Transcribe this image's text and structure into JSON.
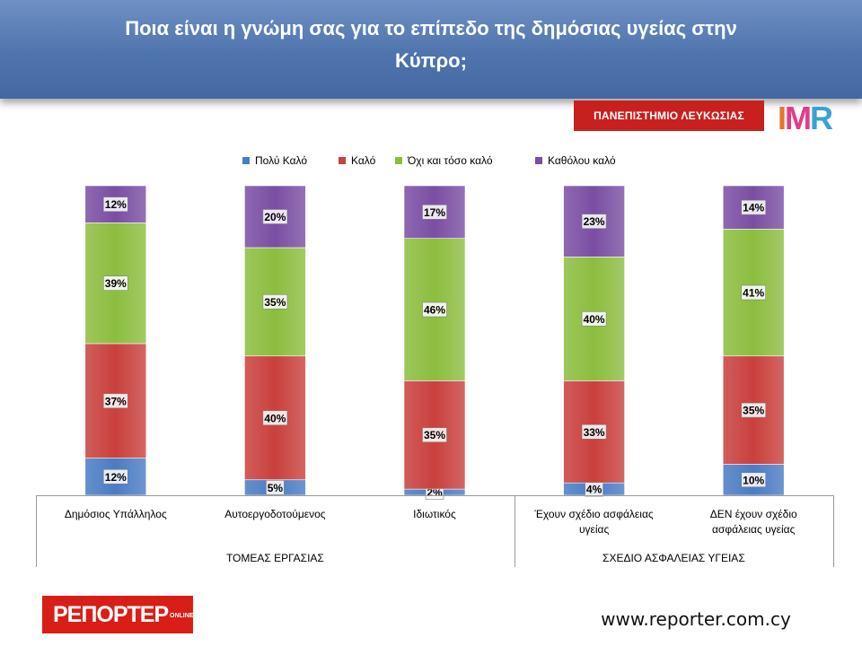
{
  "header": {
    "title_line1": "Ποια είναι η γνώμη σας για το επίπεδο της δημόσιας υγείας στην",
    "title_line2": "Κύπρο;"
  },
  "logos": {
    "university": "ΠΑΝΕΠΙΣΤΗΜΙΟ ΛΕΥΚΩΣΙΑΣ",
    "imr": "IMR",
    "reporter": "ΡΕΠΟΡΤΕΡ",
    "reporter_sub": "ONLINE"
  },
  "footer": {
    "website": "www.reporter.com.cy"
  },
  "chart_data": {
    "type": "bar",
    "stacked": true,
    "percent_stacked": true,
    "legend_position": "top",
    "categories": [
      "Δημόσιος Υπάλληλος",
      "Αυτοεργοδοτούμενος",
      "Ιδιωτικός",
      "Έχουν σχέδιο ασφάλειας υγείας",
      "ΔΕΝ έχουν σχέδιο ασφάλειας υγείας"
    ],
    "category_lines": [
      [
        "Δημόσιος Υπάλληλος"
      ],
      [
        "Αυτοεργοδοτούμενος"
      ],
      [
        "Ιδιωτικός"
      ],
      [
        "Έχουν σχέδιο ασφάλειας",
        "υγείας"
      ],
      [
        "ΔΕΝ έχουν σχέδιο",
        "ασφάλειας υγείας"
      ]
    ],
    "groups": [
      {
        "name": "ΤΟΜΕΑΣ ΕΡΓΑΣΙΑΣ",
        "categories": [
          0,
          1,
          2
        ]
      },
      {
        "name": "ΣΧΕΔΙΟ ΑΣΦΑΛΕΙΑΣ ΥΓΕΙΑΣ",
        "categories": [
          3,
          4
        ]
      }
    ],
    "series": [
      {
        "name": "Πολύ Καλό",
        "color": "#4a7cc4",
        "values": [
          12,
          5,
          2,
          4,
          10
        ]
      },
      {
        "name": "Καλό",
        "color": "#c9403d",
        "values": [
          37,
          40,
          35,
          33,
          35
        ]
      },
      {
        "name": "Όχι και τόσο καλό",
        "color": "#8cbd3f",
        "values": [
          39,
          35,
          46,
          40,
          41
        ]
      },
      {
        "name": "Καθόλου καλό",
        "color": "#7a4ea3",
        "values": [
          12,
          20,
          17,
          23,
          14
        ]
      }
    ],
    "value_suffix": "%"
  }
}
